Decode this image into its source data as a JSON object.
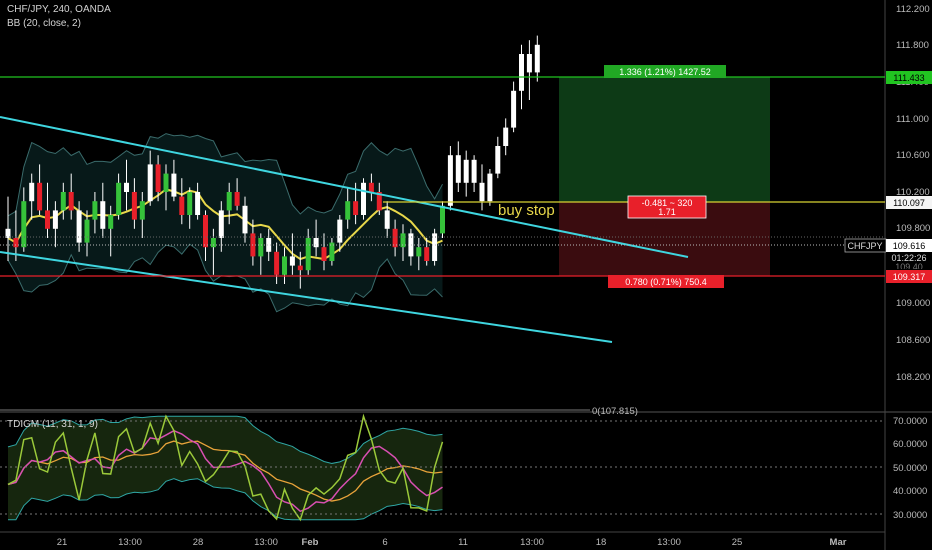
{
  "header": {
    "symbol_line": "CHF/JPY, 240, OANDA",
    "indicator_line": "BB (20, close, 2)",
    "oscillator_line": "TDIGM (11, 31, 1, 9)"
  },
  "annotations": {
    "buy_stop": "buy stop",
    "target_box": "1.336 (1.21%) 1427.52",
    "entry_box_line1": "-0.481 ~ 320",
    "entry_box_line2": "1.71",
    "stop_box": "0.780 (0.71%) 750.4",
    "fib_label": "0(107.815)"
  },
  "price_tags": {
    "target": "111.433",
    "entry": "110.097",
    "current_symbol": "CHFJPY",
    "current_price": "109.616",
    "countdown": "01:22:26",
    "stop": "109.317",
    "hidden": "109.40"
  },
  "colors": {
    "background": "#000000",
    "target_line": "#21c421",
    "entry_line": "#d8d233",
    "stop_line": "#e8202a",
    "channel": "#3fd6e0",
    "bb_basis": "#e8d84a",
    "candle": "#ffffff",
    "candle_up": "#36c23a",
    "candle_down": "#e8202a",
    "tdi_green": "#9bc93a",
    "tdi_pink": "#d84fb2",
    "tdi_orange": "#e8a33a",
    "tdi_band": "#2fa6a4"
  },
  "chart_data": [
    {
      "type": "candlestick",
      "title": "CHF/JPY, 240, OANDA",
      "x_tick_labels": [
        "21",
        "13:00",
        "28",
        "13:00",
        "Feb",
        "6",
        "11",
        "13:00",
        "18",
        "13:00",
        "25",
        "Mar"
      ],
      "y_tick_labels": [
        "112.200",
        "111.800",
        "111.400",
        "111.000",
        "110.600",
        "110.200",
        "109.800",
        "109.400",
        "109.000",
        "108.600",
        "108.200"
      ],
      "ylim": [
        107.8,
        112.3
      ],
      "levels": {
        "target": 111.433,
        "entry": 110.097,
        "current": 109.616,
        "stop": 109.317,
        "fib_zero": 107.815
      },
      "candles": [
        [
          109.8,
          110.15,
          109.45,
          109.7
        ],
        [
          109.7,
          110.0,
          109.45,
          109.6
        ],
        [
          109.6,
          110.25,
          109.55,
          110.1
        ],
        [
          110.1,
          110.4,
          109.9,
          110.3
        ],
        [
          110.3,
          110.5,
          109.95,
          110.0
        ],
        [
          110.0,
          110.3,
          109.7,
          109.8
        ],
        [
          109.8,
          110.1,
          109.6,
          110.0
        ],
        [
          110.0,
          110.3,
          109.9,
          110.2
        ],
        [
          110.2,
          110.4,
          109.9,
          110.0
        ],
        [
          110.0,
          110.1,
          109.55,
          109.65
        ],
        [
          109.65,
          110.0,
          109.5,
          109.9
        ],
        [
          109.9,
          110.2,
          109.75,
          110.1
        ],
        [
          110.1,
          110.3,
          109.7,
          109.8
        ],
        [
          109.8,
          110.05,
          109.5,
          109.95
        ],
        [
          109.95,
          110.4,
          109.9,
          110.3
        ],
        [
          110.3,
          110.55,
          110.0,
          110.2
        ],
        [
          110.2,
          110.35,
          109.8,
          109.9
        ],
        [
          109.9,
          110.2,
          109.7,
          110.1
        ],
        [
          110.1,
          110.65,
          110.05,
          110.5
        ],
        [
          110.5,
          110.6,
          110.1,
          110.2
        ],
        [
          110.2,
          110.5,
          110.0,
          110.4
        ],
        [
          110.4,
          110.55,
          110.1,
          110.15
        ],
        [
          110.15,
          110.35,
          109.85,
          109.95
        ],
        [
          109.95,
          110.25,
          109.8,
          110.2
        ],
        [
          110.2,
          110.3,
          109.9,
          109.95
        ],
        [
          109.95,
          110.0,
          109.45,
          109.6
        ],
        [
          109.6,
          109.8,
          109.3,
          109.7
        ],
        [
          109.7,
          110.1,
          109.55,
          110.0
        ],
        [
          110.0,
          110.3,
          109.85,
          110.2
        ],
        [
          110.2,
          110.35,
          110.0,
          110.05
        ],
        [
          110.05,
          110.15,
          109.65,
          109.75
        ],
        [
          109.75,
          109.9,
          109.4,
          109.5
        ],
        [
          109.5,
          109.75,
          109.3,
          109.7
        ],
        [
          109.7,
          109.8,
          109.45,
          109.55
        ],
        [
          109.55,
          109.65,
          109.2,
          109.3
        ],
        [
          109.3,
          109.6,
          109.2,
          109.5
        ],
        [
          109.5,
          109.75,
          109.3,
          109.4
        ],
        [
          109.4,
          109.55,
          109.15,
          109.35
        ],
        [
          109.35,
          109.8,
          109.3,
          109.7
        ],
        [
          109.7,
          109.9,
          109.5,
          109.6
        ],
        [
          109.6,
          109.75,
          109.35,
          109.45
        ],
        [
          109.45,
          109.7,
          109.4,
          109.65
        ],
        [
          109.65,
          109.95,
          109.55,
          109.9
        ],
        [
          109.9,
          110.25,
          109.8,
          110.1
        ],
        [
          110.1,
          110.3,
          109.85,
          109.95
        ],
        [
          109.95,
          110.35,
          109.9,
          110.3
        ],
        [
          110.3,
          110.4,
          110.1,
          110.2
        ],
        [
          110.2,
          110.3,
          109.95,
          110.0
        ],
        [
          110.0,
          110.1,
          109.7,
          109.8
        ],
        [
          109.8,
          109.9,
          109.5,
          109.6
        ],
        [
          109.6,
          109.85,
          109.45,
          109.75
        ],
        [
          109.75,
          109.8,
          109.4,
          109.5
        ],
        [
          109.5,
          109.7,
          109.35,
          109.6
        ],
        [
          109.6,
          109.7,
          109.4,
          109.45
        ],
        [
          109.45,
          109.8,
          109.4,
          109.75
        ],
        [
          109.75,
          110.1,
          109.7,
          110.05
        ],
        [
          110.05,
          110.7,
          110.0,
          110.6
        ],
        [
          110.6,
          110.75,
          110.2,
          110.3
        ],
        [
          110.3,
          110.65,
          110.15,
          110.55
        ],
        [
          110.55,
          110.6,
          110.2,
          110.3
        ],
        [
          110.3,
          110.5,
          110.0,
          110.1
        ],
        [
          110.1,
          110.45,
          110.05,
          110.4
        ],
        [
          110.4,
          110.8,
          110.35,
          110.7
        ],
        [
          110.7,
          111.0,
          110.6,
          110.9
        ],
        [
          110.9,
          111.4,
          110.85,
          111.3
        ],
        [
          111.3,
          111.8,
          111.1,
          111.7
        ],
        [
          111.7,
          111.85,
          111.2,
          111.5
        ],
        [
          111.5,
          111.9,
          111.4,
          111.8
        ]
      ]
    },
    {
      "type": "line",
      "title": "TDIGM (11, 31, 1, 9)",
      "y_tick_labels": [
        "70.0000",
        "60.0000",
        "50.0000",
        "40.0000",
        "30.0000"
      ],
      "ylim": [
        25,
        72
      ]
    }
  ]
}
